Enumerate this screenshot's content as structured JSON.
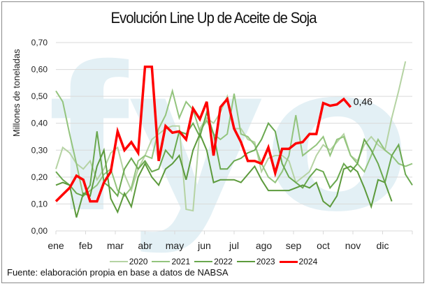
{
  "chart_data": {
    "type": "line",
    "title": "Evolución Line Up de Aceite de Soja",
    "xlabel": "",
    "ylabel": "Millones de toneladas",
    "ylim": [
      0,
      0.7
    ],
    "yticks": [
      "0,00",
      "0,10",
      "0,20",
      "0,30",
      "0,40",
      "0,50",
      "0,60",
      "0,70"
    ],
    "ytick_values": [
      0,
      0.1,
      0.2,
      0.3,
      0.4,
      0.5,
      0.6,
      0.7
    ],
    "xticks": [
      "ene",
      "feb",
      "mar",
      "abr",
      "may",
      "jun",
      "jul",
      "ago",
      "sep",
      "oct",
      "nov",
      "dic"
    ],
    "x_unit": "week",
    "x_weeks": 52,
    "grid": true,
    "legend": "bottom",
    "annotation": "0,46",
    "source": "Fuente: elaboración propia en base a datos de NABSA",
    "series": [
      {
        "name": "2020",
        "color": "#b5d3a3",
        "width": 2,
        "values": [
          0.23,
          0.31,
          0.29,
          0.25,
          0.23,
          0.26,
          0.19,
          0.23,
          0.29,
          0.31,
          0.21,
          0.15,
          0.23,
          0.28,
          0.34,
          0.36,
          0.38,
          0.39,
          0.39,
          0.08,
          0.075,
          0.38,
          0.42,
          0.4,
          0.44,
          0.5,
          0.38,
          0.38,
          0.34,
          0.33,
          0.22,
          0.27,
          0.28,
          0.28,
          0.26,
          0.18,
          0.2,
          0.22,
          0.28,
          0.32,
          0.3,
          0.33,
          0.36,
          0.28,
          0.26,
          0.32,
          0.35,
          0.32,
          0.3,
          0.42,
          0.52,
          0.63
        ]
      },
      {
        "name": "2021",
        "color": "#93c47d",
        "width": 2,
        "values": [
          0.52,
          0.48,
          0.36,
          0.25,
          0.13,
          0.15,
          0.17,
          0.21,
          0.23,
          0.15,
          0.13,
          0.16,
          0.26,
          0.28,
          0.27,
          0.38,
          0.43,
          0.52,
          0.42,
          0.48,
          0.45,
          0.37,
          0.41,
          0.36,
          0.34,
          0.36,
          0.51,
          0.36,
          0.35,
          0.32,
          0.25,
          0.2,
          0.18,
          0.22,
          0.28,
          0.43,
          0.28,
          0.3,
          0.32,
          0.35,
          0.28,
          0.34,
          0.35,
          0.28,
          0.25,
          0.22,
          0.28,
          0.34,
          0.3,
          0.28,
          0.25,
          0.24,
          0.25
        ]
      },
      {
        "name": "2022",
        "color": "#6aa84f",
        "width": 2,
        "values": [
          0.22,
          0.19,
          0.17,
          0.14,
          0.13,
          0.17,
          0.37,
          0.18,
          0.16,
          0.13,
          0.23,
          0.27,
          0.23,
          0.26,
          0.22,
          0.23,
          0.3,
          0.27,
          0.37,
          0.36,
          0.4,
          0.35,
          0.44,
          0.36,
          0.23,
          0.23,
          0.26,
          0.27,
          0.29,
          0.3,
          0.34,
          0.4,
          0.37,
          0.25,
          0.2,
          0.18,
          0.16,
          0.2,
          0.23,
          0.22,
          0.16,
          0.19,
          0.25,
          0.22,
          0.25,
          0.34,
          0.3,
          0.25,
          0.18,
          0.28,
          0.32,
          0.21,
          0.17
        ]
      },
      {
        "name": "2023",
        "color": "#5c9a3c",
        "width": 2,
        "values": [
          0.17,
          0.18,
          0.17,
          0.05,
          0.14,
          0.13,
          0.24,
          0.3,
          0.12,
          0.07,
          0.14,
          0.09,
          0.2,
          0.25,
          0.2,
          0.17,
          0.23,
          0.25,
          0.28,
          0.19,
          0.3,
          0.36,
          0.3,
          0.18,
          0.19,
          0.19,
          0.19,
          0.18,
          0.21,
          0.24,
          0.19,
          0.15,
          0.15,
          0.15,
          0.15,
          0.16,
          0.17,
          0.16,
          0.18,
          0.11,
          0.09,
          0.13,
          0.23,
          0.24,
          0.22,
          0.16,
          0.09,
          0.19,
          0.18,
          0.11
        ]
      },
      {
        "name": "2024",
        "color": "#ff0000",
        "width": 3.5,
        "values": [
          0.11,
          0.135,
          0.16,
          0.205,
          0.19,
          0.11,
          0.11,
          0.18,
          0.22,
          0.37,
          0.3,
          0.33,
          0.29,
          0.61,
          0.61,
          0.26,
          0.39,
          0.365,
          0.37,
          0.34,
          0.455,
          0.415,
          0.48,
          0.28,
          0.46,
          0.49,
          0.38,
          0.33,
          0.26,
          0.26,
          0.25,
          0.31,
          0.215,
          0.305,
          0.305,
          0.325,
          0.33,
          0.36,
          0.36,
          0.475,
          0.465,
          0.47,
          0.49,
          0.46
        ]
      }
    ]
  },
  "watermark": "fyo"
}
